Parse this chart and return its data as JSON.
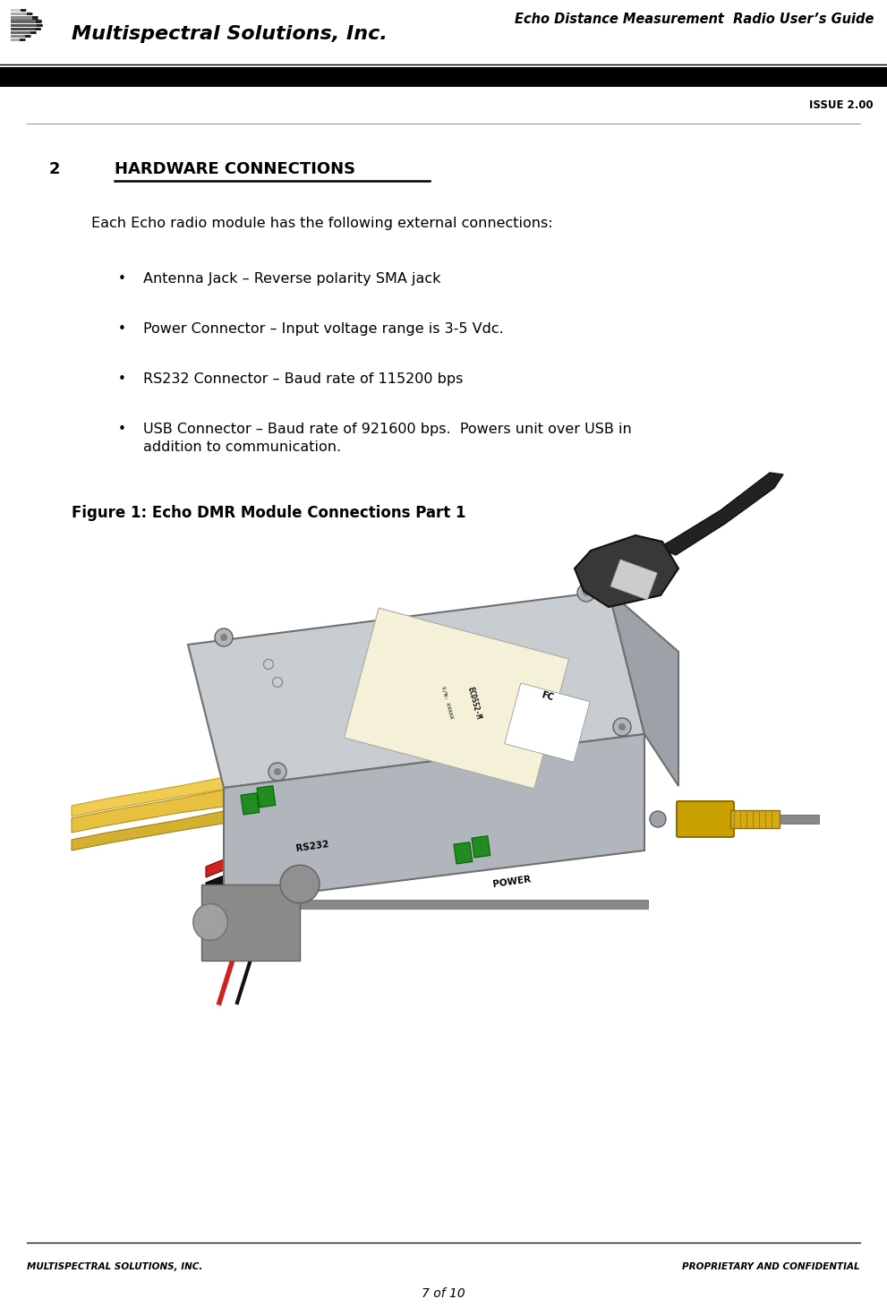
{
  "page_width": 9.91,
  "page_height": 14.7,
  "dpi": 100,
  "bg_color": "#ffffff",
  "header": {
    "company_name": "Multispectral Solutions, Inc.",
    "title_right": "Echo Distance Measurement  Radio User’s Guide",
    "bar_color": "#000000",
    "issue_label": "ISSUE 2.00"
  },
  "section_number": "2",
  "section_title": "HARDWARE CONNECTIONS",
  "intro_text": "Each Echo radio module has the following external connections:",
  "bullets": [
    "Antenna Jack – Reverse polarity SMA jack",
    "Power Connector – Input voltage range is 3-5 Vdc.",
    "RS232 Connector – Baud rate of 115200 bps",
    "USB Connector – Baud rate of 921600 bps.  Powers unit over USB in\naddition to communication."
  ],
  "figure_label": "Figure 1: Echo DMR Module Connections Part 1",
  "footer_left": "MULTISPECTRAL SOLUTIONS, INC.",
  "footer_right": "PROPRIETARY AND CONFIDENTIAL",
  "footer_page": "7 of 10"
}
